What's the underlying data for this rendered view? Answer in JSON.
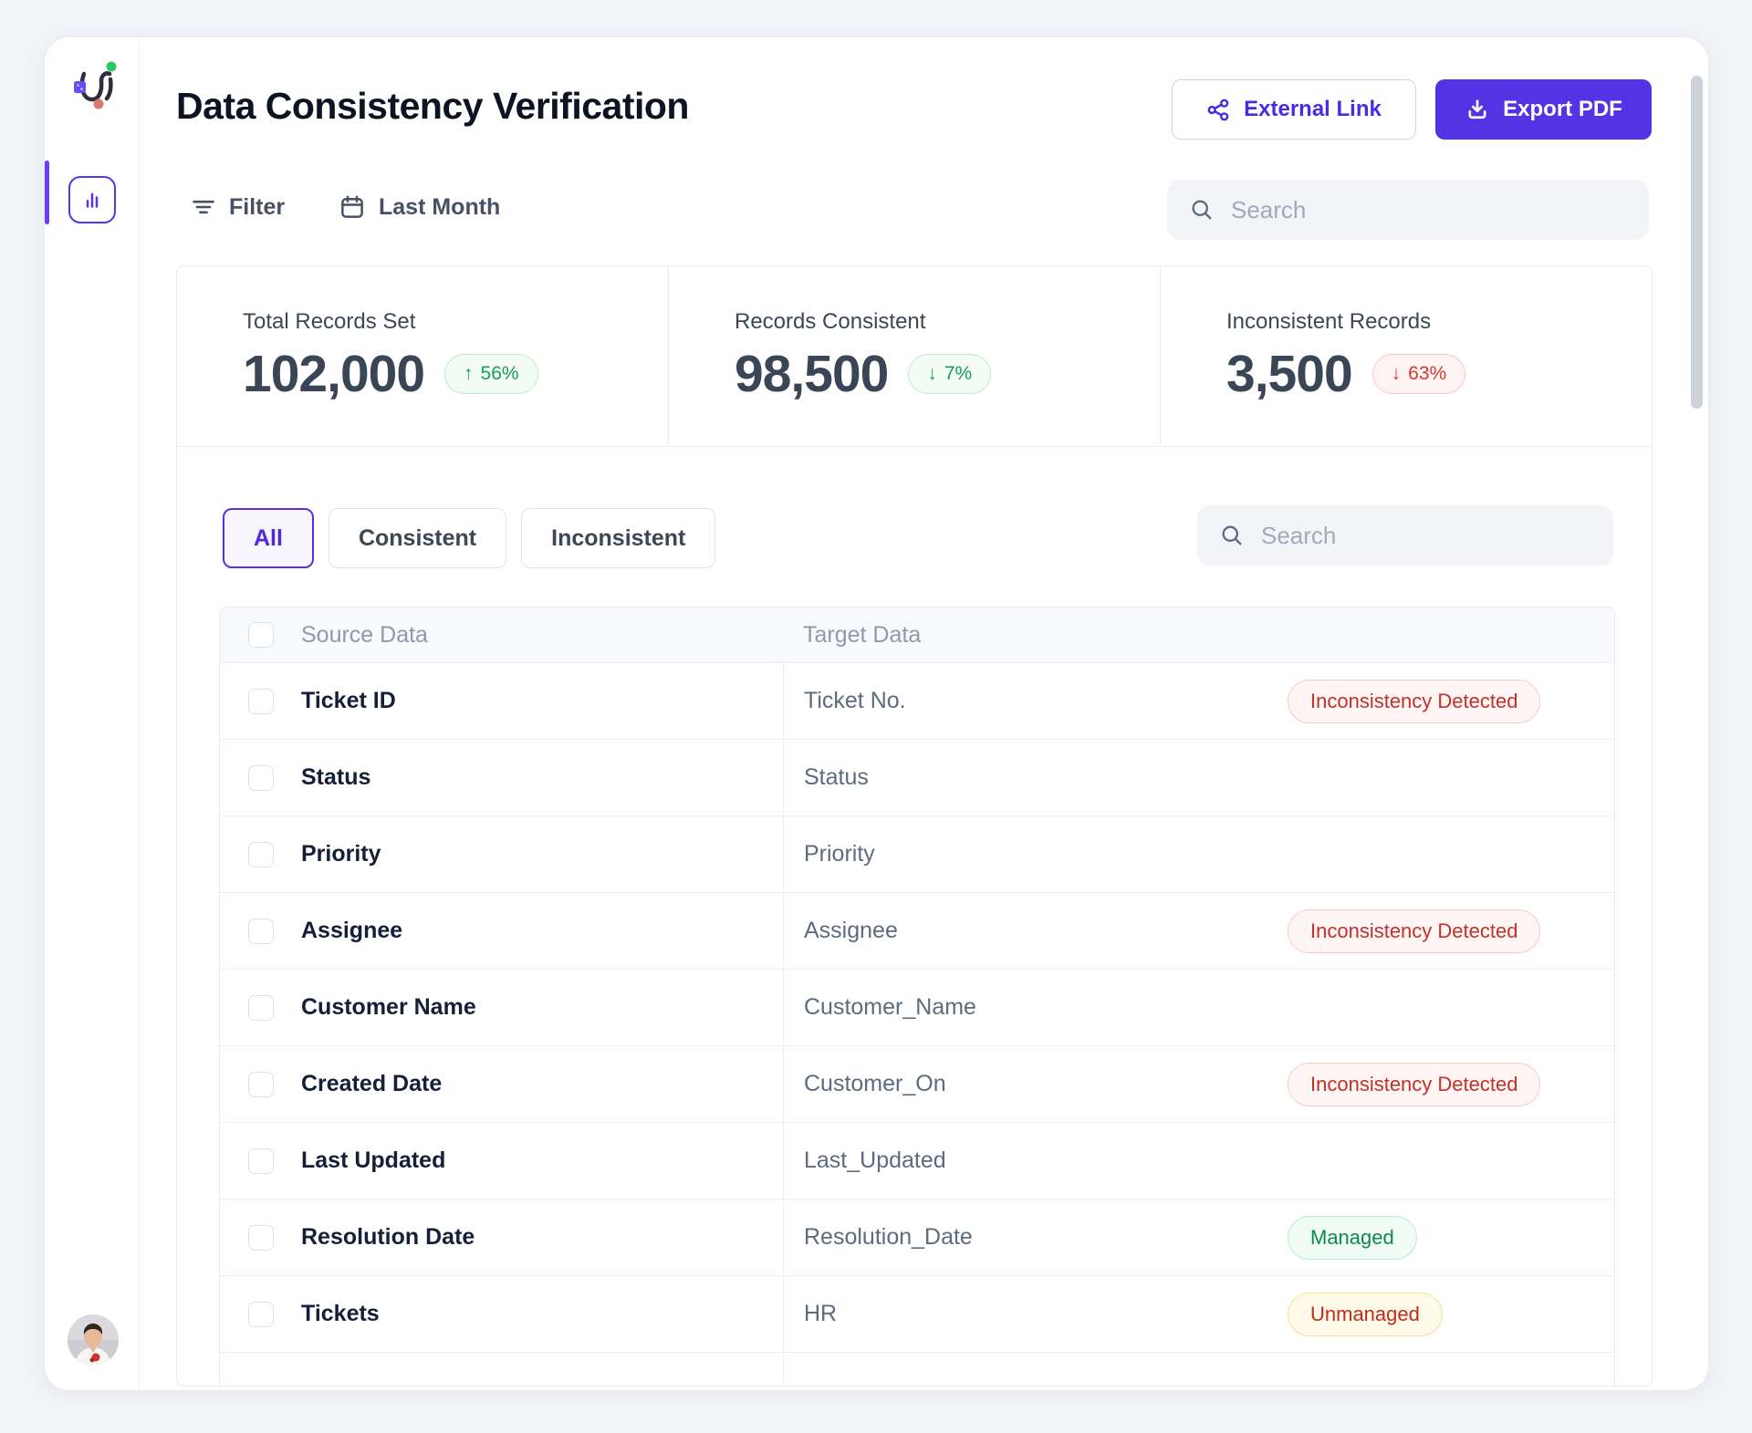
{
  "app": {
    "title": "Data Consistency Verification"
  },
  "header": {
    "external_link_label": "External Link",
    "export_pdf_label": "Export PDF"
  },
  "toolbar": {
    "filter_label": "Filter",
    "date_range_label": "Last Month",
    "search_placeholder": "Search"
  },
  "stats": [
    {
      "label": "Total Records Set",
      "value": "102,000",
      "delta": "56%",
      "direction": "up",
      "tone": "positive"
    },
    {
      "label": "Records Consistent",
      "value": "98,500",
      "delta": "7%",
      "direction": "down",
      "tone": "positive"
    },
    {
      "label": "Inconsistent Records",
      "value": "3,500",
      "delta": "63%",
      "direction": "down",
      "tone": "negative"
    }
  ],
  "tabs": [
    {
      "label": "All",
      "active": true
    },
    {
      "label": "Consistent",
      "active": false
    },
    {
      "label": "Inconsistent",
      "active": false
    }
  ],
  "table": {
    "search_placeholder": "Search",
    "columns": [
      "Source Data",
      "Target Data"
    ],
    "rows": [
      {
        "source": "Ticket ID",
        "target": "Ticket No.",
        "badge": "Inconsistency Detected",
        "badge_type": "error"
      },
      {
        "source": "Status",
        "target": "Status",
        "badge": "",
        "badge_type": ""
      },
      {
        "source": "Priority",
        "target": "Priority",
        "badge": "",
        "badge_type": ""
      },
      {
        "source": "Assignee",
        "target": "Assignee",
        "badge": "Inconsistency Detected",
        "badge_type": "error"
      },
      {
        "source": "Customer Name",
        "target": "Customer_Name",
        "badge": "",
        "badge_type": ""
      },
      {
        "source": "Created Date",
        "target": "Customer_On",
        "badge": "Inconsistency Detected",
        "badge_type": "error"
      },
      {
        "source": "Last Updated",
        "target": "Last_Updated",
        "badge": "",
        "badge_type": ""
      },
      {
        "source": "Resolution Date",
        "target": "Resolution_Date",
        "badge": "Managed",
        "badge_type": "success"
      },
      {
        "source": "Tickets",
        "target": "HR",
        "badge": "Unmanaged",
        "badge_type": "warning"
      },
      {
        "source": "",
        "target": "",
        "badge": "",
        "badge_type": ""
      }
    ]
  },
  "colors": {
    "accent_purple": "#5433e4",
    "delta_positive": "#1a9e54",
    "delta_negative": "#d03b2f",
    "badge_error_text": "#c0322a",
    "badge_success_text": "#0e8a4f",
    "badge_warning_text": "#bf2b20"
  }
}
